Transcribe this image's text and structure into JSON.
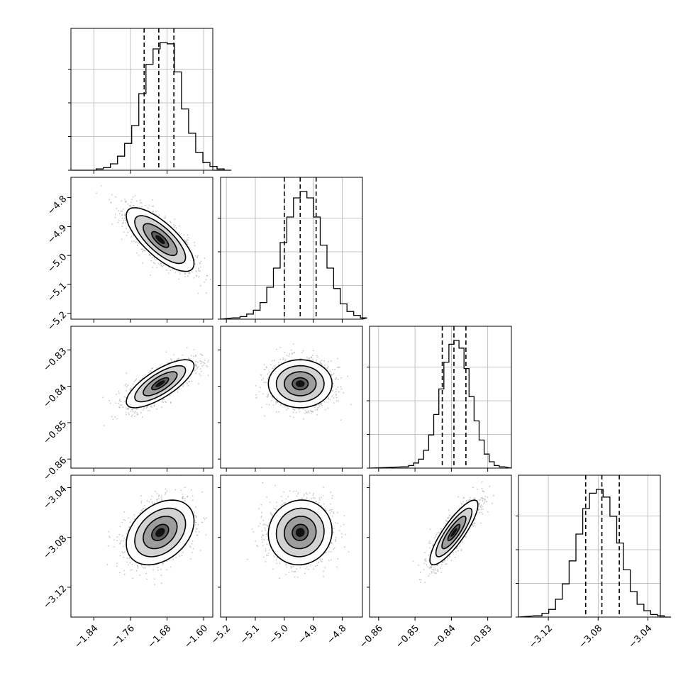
{
  "chart_data": {
    "type": "corner",
    "parameters": 4,
    "axes": [
      {
        "name": "",
        "center": -1.695,
        "sigma": 0.037,
        "range": [
          -1.89,
          -1.58
        ],
        "ticks": [
          "-1.84",
          "-1.76",
          "-1.68",
          "-1.60"
        ],
        "tick_values": [
          -1.84,
          -1.76,
          -1.68,
          -1.6
        ],
        "quantiles": [
          -1.73,
          -1.698,
          -1.665
        ]
      },
      {
        "name": "",
        "center": -4.945,
        "sigma": 0.055,
        "range": [
          -5.22,
          -4.73
        ],
        "ticks": [
          "-5.2",
          "-5.1",
          "-5.0",
          "-4.9",
          "-4.8"
        ],
        "tick_values": [
          -5.2,
          -5.1,
          -5.0,
          -4.9,
          -4.8
        ],
        "quantiles": [
          -5.0,
          -4.945,
          -4.89
        ]
      },
      {
        "name": "",
        "center": -0.8393,
        "sigma": 0.0033,
        "range": [
          -0.8625,
          -0.8235
        ],
        "ticks": [
          "-0.86",
          "-0.85",
          "-0.84",
          "-0.83"
        ],
        "tick_values": [
          -0.86,
          -0.85,
          -0.84,
          -0.83
        ],
        "quantiles": [
          -0.8425,
          -0.8393,
          -0.836
        ]
      },
      {
        "name": "",
        "center": -3.076,
        "sigma": 0.013,
        "range": [
          -3.144,
          -3.03
        ],
        "ticks": [
          "-3.12",
          "-3.08",
          "-3.04"
        ],
        "tick_values": [
          -3.12,
          -3.08,
          -3.04
        ],
        "quantiles": [
          -3.09,
          -3.077,
          -3.063
        ]
      }
    ],
    "correlations": [
      {
        "pair": [
          0,
          1
        ],
        "rho": -0.75
      },
      {
        "pair": [
          0,
          2
        ],
        "rho": 0.75
      },
      {
        "pair": [
          1,
          2
        ],
        "rho": 0.0
      },
      {
        "pair": [
          0,
          3
        ],
        "rho": 0.35
      },
      {
        "pair": [
          1,
          3
        ],
        "rho": 0.05
      },
      {
        "pair": [
          2,
          3
        ],
        "rho": 0.85
      }
    ],
    "histograms": [
      {
        "axis": 0,
        "counts": [
          0,
          1,
          2,
          5,
          11,
          21,
          35,
          60,
          83,
          95,
          100,
          99,
          77,
          48,
          29,
          14,
          6,
          3,
          1,
          0
        ]
      },
      {
        "axis": 1,
        "counts": [
          1,
          2,
          4,
          7,
          13,
          25,
          40,
          60,
          80,
          95,
          100,
          95,
          80,
          58,
          40,
          24,
          12,
          6,
          3,
          1
        ]
      },
      {
        "axis": 2,
        "counts": [
          1,
          2,
          4,
          7,
          14,
          26,
          42,
          62,
          83,
          97,
          100,
          94,
          78,
          56,
          37,
          22,
          11,
          5,
          2,
          1
        ]
      },
      {
        "axis": 3,
        "counts": [
          1,
          3,
          6,
          14,
          26,
          44,
          65,
          85,
          97,
          100,
          94,
          79,
          58,
          37,
          20,
          10,
          5,
          2,
          1,
          0
        ]
      }
    ],
    "contour_levels_sigma": [
      0.5,
      1.0,
      1.5,
      2.0
    ],
    "grid": true
  },
  "colors": {
    "scatter": "#b3b3b3",
    "line": "#000000",
    "grid": "#b0b0b0"
  }
}
